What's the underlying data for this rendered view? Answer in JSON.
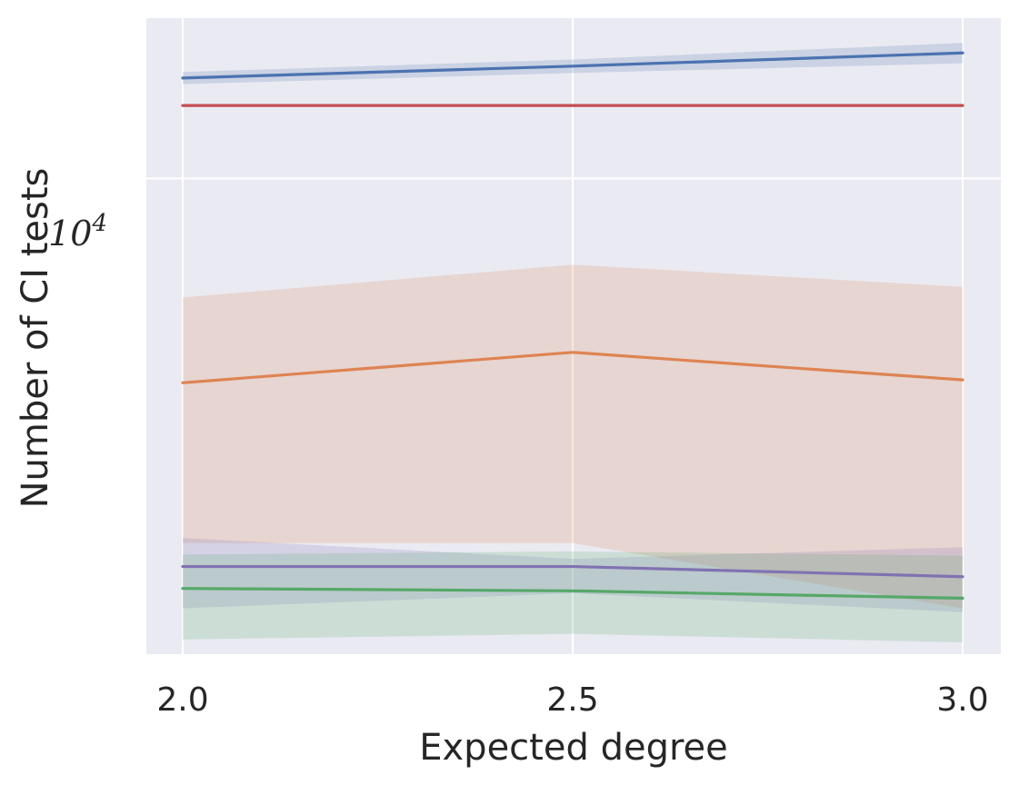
{
  "chart_data": {
    "type": "line",
    "xlabel": "Expected degree",
    "ylabel": "Number of CI tests",
    "x": [
      2.0,
      2.5,
      3.0
    ],
    "x_tick_labels": [
      "2.0",
      "2.5",
      "3.0"
    ],
    "y_scale": "log",
    "y_tick_base": "10",
    "y_tick_exponent": "4",
    "ylim": [
      1900,
      17500
    ],
    "grid": true,
    "legend": "none",
    "series": [
      {
        "color": "#4c72b0",
        "values": [
          14200,
          14800,
          15500
        ],
        "lower": [
          13900,
          14450,
          14950
        ],
        "upper": [
          14500,
          15150,
          16050
        ]
      },
      {
        "color": "#c44e52",
        "values": [
          12900,
          12900,
          12900
        ]
      },
      {
        "color": "#dd8452",
        "values": [
          4900,
          5450,
          4950
        ],
        "lower": [
          2800,
          2800,
          2230
        ],
        "upper": [
          6600,
          7400,
          6850
        ]
      },
      {
        "color": "#8172b2",
        "values": [
          2580,
          2580,
          2490
        ],
        "lower": [
          2230,
          2350,
          2200
        ],
        "upper": [
          2850,
          2650,
          2760
        ]
      },
      {
        "color": "#55a868",
        "values": [
          2390,
          2370,
          2310
        ],
        "lower": [
          2000,
          2040,
          1980
        ],
        "upper": [
          2690,
          2720,
          2680
        ]
      }
    ]
  }
}
